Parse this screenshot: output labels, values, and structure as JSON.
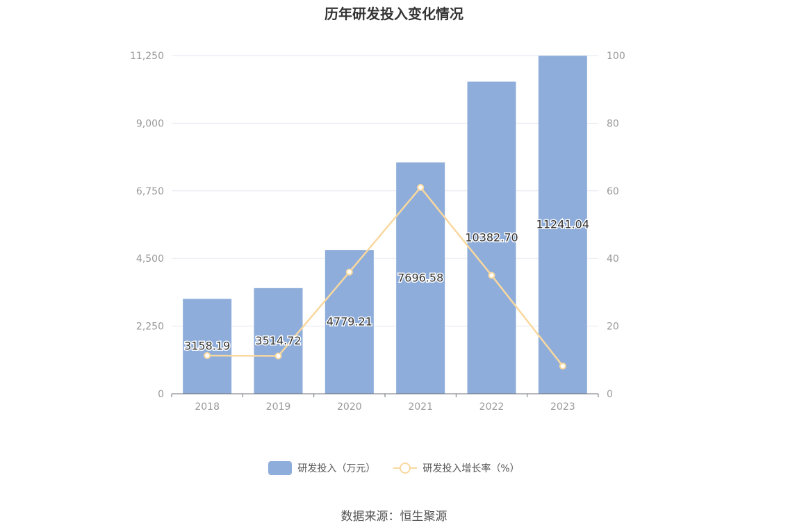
{
  "title": "历年研发投入变化情况",
  "source": "数据来源：恒生聚源",
  "colors": {
    "bar": "#8eadda",
    "line": "#f9d89f",
    "grid": "#e3e6f0",
    "axis_text": "#999999"
  },
  "chart_data": {
    "type": "bar",
    "title": "历年研发投入变化情况",
    "categories": [
      "2018",
      "2019",
      "2020",
      "2021",
      "2022",
      "2023"
    ],
    "series": [
      {
        "name": "研发投入（万元）",
        "type": "bar",
        "axis": "left",
        "values": [
          3158.19,
          3514.72,
          4779.21,
          7696.58,
          10382.7,
          11241.04
        ],
        "labels": [
          "3158.19",
          "3514.72",
          "4779.21",
          "7696.58",
          "10382.70",
          "11241.04"
        ]
      },
      {
        "name": "研发投入增长率（%）",
        "type": "line",
        "axis": "right",
        "values": [
          11.3,
          11.2,
          36.0,
          61.0,
          35.0,
          8.2
        ]
      }
    ],
    "y_left": {
      "ylim": [
        0,
        11250
      ],
      "ticks": [
        "0",
        "2,250",
        "4,500",
        "6,750",
        "9,000",
        "11,250"
      ]
    },
    "y_right": {
      "ylim": [
        0,
        100
      ],
      "ticks": [
        "0",
        "20",
        "40",
        "60",
        "80",
        "100"
      ]
    },
    "grid": true,
    "legend_position": "bottom"
  }
}
